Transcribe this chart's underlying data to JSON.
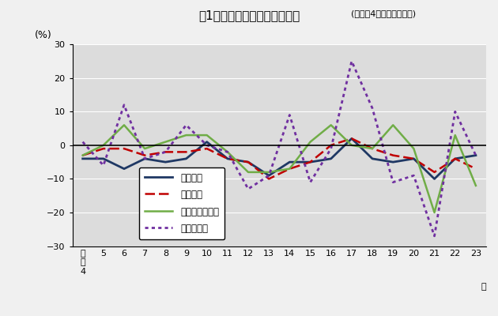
{
  "title_main": "図1　主要項目の前年比の推移",
  "title_sub": "(従業者4人以上の事業所)",
  "ylabel": "(%)",
  "ylim": [
    -30,
    30
  ],
  "yticks": [
    -30,
    -20,
    -10,
    0,
    10,
    20,
    30
  ],
  "x_labels": [
    "平\n成\n4",
    "5",
    "6",
    "7",
    "8",
    "9",
    "10",
    "11",
    "12",
    "13",
    "14",
    "15",
    "16",
    "17",
    "18",
    "19",
    "20",
    "21",
    "22",
    "23"
  ],
  "x_positions": [
    0,
    1,
    2,
    3,
    4,
    5,
    6,
    7,
    8,
    9,
    10,
    11,
    12,
    13,
    14,
    15,
    16,
    17,
    18,
    19
  ],
  "series": {
    "事業所数": {
      "color": "#1f3864",
      "linestyle": "solid",
      "linewidth": 2.0,
      "values": [
        -4,
        -4,
        -7,
        -4,
        -5,
        -4,
        1,
        -4,
        -5,
        -9,
        -5,
        -5,
        -4,
        2,
        -4,
        -5,
        -4,
        -10,
        -4,
        -3
      ]
    },
    "従業者数": {
      "color": "#c00000",
      "linestyle": "dashed",
      "linewidth": 1.8,
      "values": [
        -3,
        -1,
        -1,
        -3,
        -2,
        -2,
        -1,
        -4,
        -5,
        -10,
        -7,
        -5,
        0,
        2,
        -1,
        -3,
        -4,
        -8,
        -4,
        -7
      ]
    },
    "製造品出荷額等": {
      "color": "#70ad47",
      "linestyle": "solid",
      "linewidth": 1.8,
      "values": [
        -3,
        0,
        6,
        -1,
        1,
        3,
        3,
        -2,
        -8,
        -8,
        -7,
        1,
        6,
        0,
        -1,
        6,
        -1,
        -20,
        3,
        -12
      ]
    },
    "付加価値額": {
      "color": "#7030a0",
      "linestyle": "dotted",
      "linewidth": 2.0,
      "values": [
        1,
        -6,
        12,
        -4,
        -2,
        6,
        0,
        -2,
        -13,
        -9,
        9,
        -11,
        -1,
        25,
        11,
        -11,
        -9,
        -27,
        10,
        -3
      ]
    }
  },
  "legend_labels": [
    "事業所数",
    "従業者数",
    "製造品出荷額等",
    "付加価値額"
  ],
  "bg_color": "#dcdcdc",
  "grid_color": "#ffffff",
  "fig_bg_color": "#f0f0f0"
}
